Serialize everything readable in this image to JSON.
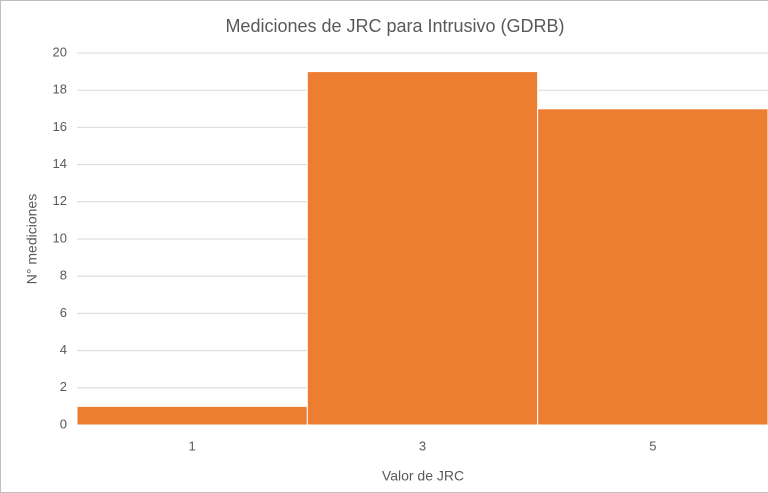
{
  "chart_data": {
    "type": "bar",
    "title": "Mediciones de JRC para Intrusivo (GDRB)",
    "x_label": "Valor de JRC",
    "y_label": "N° mediciones",
    "categories": [
      "1",
      "3",
      "5"
    ],
    "values": [
      1,
      19,
      17
    ],
    "color": "#ed7d31",
    "ylim": [
      0,
      20
    ],
    "yticks": [
      0,
      2,
      4,
      6,
      8,
      10,
      12,
      14,
      16,
      18,
      20
    ],
    "grid": true
  }
}
